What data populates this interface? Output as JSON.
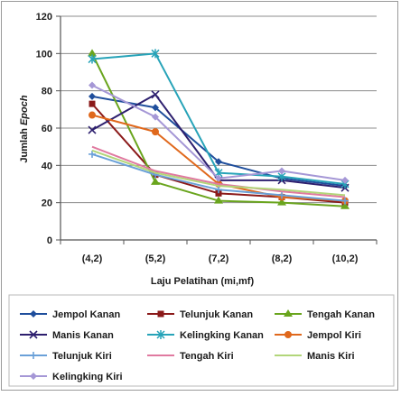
{
  "chart_data": {
    "type": "line",
    "title": "",
    "xlabel": "Laju Pelatihan (mi,mf)",
    "ylabel": "Jumlah Epoch",
    "ylabel_parts": [
      "Jumlah ",
      "Epoch"
    ],
    "ylim": [
      0,
      120
    ],
    "yticks": [
      0,
      20,
      40,
      60,
      80,
      100,
      120
    ],
    "grid": "horizontal",
    "legend_placement": "bottom",
    "categories": [
      "(4,2)",
      "(5,2)",
      "(7,2)",
      "(8,2)",
      "(10,2)"
    ],
    "series": [
      {
        "name": "Jempol Kanan",
        "color": "#1f4e9c",
        "marker": "diamond",
        "values": [
          77,
          71,
          42,
          33,
          29
        ]
      },
      {
        "name": "Telunjuk Kanan",
        "color": "#8b1a1a",
        "marker": "square",
        "values": [
          73,
          35,
          25,
          23,
          20
        ]
      },
      {
        "name": "Tengah Kanan",
        "color": "#6aa51e",
        "marker": "triangle",
        "values": [
          100,
          31,
          21,
          20,
          18
        ]
      },
      {
        "name": "Manis Kanan",
        "color": "#2d1f6e",
        "marker": "x",
        "values": [
          59,
          78,
          32,
          32,
          28
        ]
      },
      {
        "name": "Kelingking Kanan",
        "color": "#27a3b8",
        "marker": "star",
        "values": [
          97,
          100,
          36,
          34,
          30
        ]
      },
      {
        "name": "Jempol Kiri",
        "color": "#e0681c",
        "marker": "circle",
        "values": [
          67,
          58,
          30,
          23,
          21
        ]
      },
      {
        "name": "Telunjuk Kiri",
        "color": "#6aa0d8",
        "marker": "plus",
        "values": [
          46,
          35,
          27,
          24,
          21
        ]
      },
      {
        "name": "Tengah Kiri",
        "color": "#e07aa0",
        "marker": "none",
        "values": [
          50,
          37,
          30,
          26,
          23
        ]
      },
      {
        "name": "Manis Kiri",
        "color": "#b2d67a",
        "marker": "none",
        "values": [
          48,
          36,
          29,
          27,
          24
        ]
      },
      {
        "name": "Kelingking Kiri",
        "color": "#a597d6",
        "marker": "diamond",
        "values": [
          83,
          66,
          33,
          37,
          32
        ]
      }
    ]
  }
}
